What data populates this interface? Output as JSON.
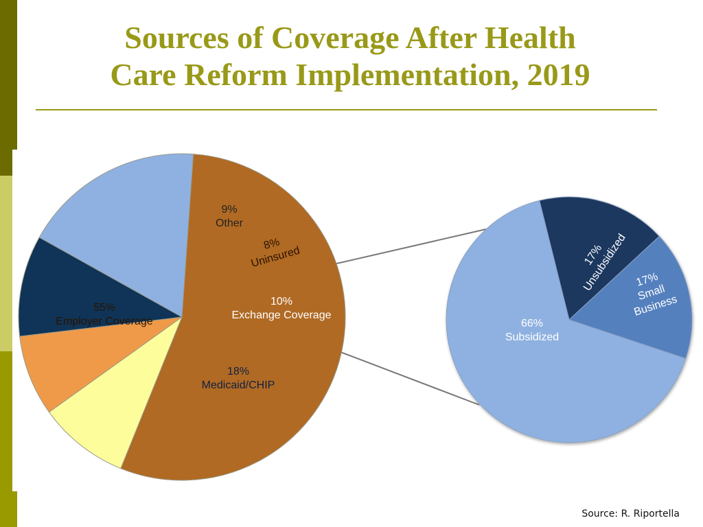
{
  "slide": {
    "title_line1": "Sources of Coverage After Health",
    "title_line2": "Care Reform Implementation, 2019",
    "source": "Source: R. Riportella",
    "accent_color": "#999919"
  },
  "chart_data": [
    {
      "type": "pie",
      "title": "Sources of Coverage After Health Care Reform Implementation, 2019",
      "slices": [
        {
          "name": "Employer Coverage",
          "value": 55,
          "label": "55%",
          "color": "#b06a24",
          "text_color": "#2a1200"
        },
        {
          "name": "Other",
          "value": 9,
          "label": "9%",
          "color": "#fdfd9c",
          "text_color": "#222222"
        },
        {
          "name": "Uninsured",
          "value": 8,
          "label": "8%",
          "color": "#ef9a48",
          "text_color": "#2a1200"
        },
        {
          "name": "Exchange Coverage",
          "value": 10,
          "label": "10%",
          "color": "#0f3457",
          "text_color": "#ffffff",
          "exploded": true
        },
        {
          "name": "Medicaid/CHIP",
          "value": 18,
          "label": "18%",
          "color": "#8fb1e1",
          "text_color": "#102040"
        }
      ]
    },
    {
      "type": "pie",
      "title": "Exchange Coverage breakdown",
      "slices": [
        {
          "name": "Unsubsidized",
          "value": 17,
          "label": "17%",
          "color": "#1c375f",
          "text_color": "#ffffff"
        },
        {
          "name": "Small Business",
          "value": 17,
          "label": "17%",
          "color": "#5580be",
          "text_color": "#ffffff"
        },
        {
          "name": "Subsidized",
          "value": 66,
          "label": "66%",
          "color": "#8fb1e1",
          "text_color": "#ffffff"
        }
      ]
    }
  ]
}
